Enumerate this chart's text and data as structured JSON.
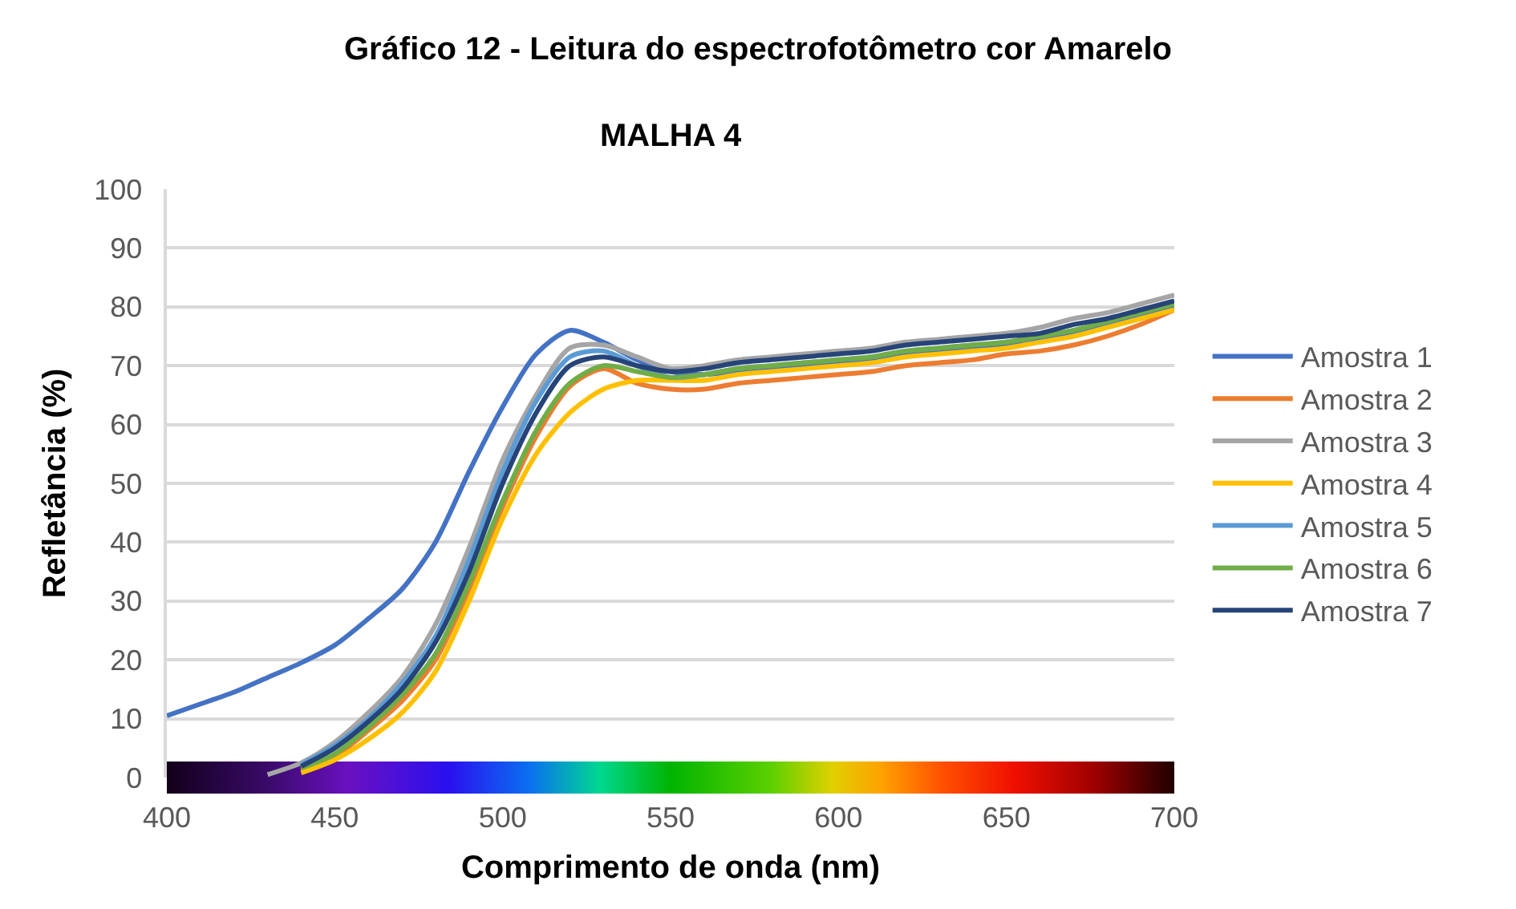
{
  "chart_data": {
    "type": "line",
    "title": "Gráfico 12 - Leitura do espectrofotômetro cor Amarelo",
    "subtitle": "MALHA 4",
    "xlabel": "Comprimento de onda (nm)",
    "ylabel": "Refletância (%)",
    "x": [
      400,
      410,
      420,
      430,
      440,
      450,
      460,
      470,
      480,
      490,
      500,
      510,
      520,
      530,
      540,
      550,
      560,
      570,
      580,
      590,
      600,
      610,
      620,
      630,
      640,
      650,
      660,
      670,
      680,
      690,
      700
    ],
    "xlim": [
      400,
      700
    ],
    "xticks": [
      400,
      450,
      500,
      550,
      600,
      650,
      700
    ],
    "ylim": [
      0,
      100
    ],
    "yticks": [
      0,
      10,
      20,
      30,
      40,
      50,
      60,
      70,
      80,
      90,
      100
    ],
    "grid": "y",
    "legend": "right",
    "marker": "none",
    "line_style": "solid",
    "series": [
      {
        "name": "Amostra 1",
        "color": "#4472c4",
        "values": [
          10.5,
          12.5,
          14.5,
          17,
          19.5,
          22.5,
          27,
          32,
          40,
          52,
          63,
          72,
          76,
          74,
          71,
          69,
          68.5,
          69,
          69.5,
          70,
          70.5,
          71,
          72,
          72.5,
          73,
          73.5,
          74.5,
          75.5,
          77,
          78.5,
          80
        ]
      },
      {
        "name": "Amostra 2",
        "color": "#ed7d31",
        "values": [
          null,
          null,
          null,
          null,
          1.2,
          3.5,
          8,
          13,
          20,
          32,
          46,
          58,
          66.5,
          69.5,
          67,
          66,
          66,
          67,
          67.5,
          68,
          68.5,
          69,
          70,
          70.5,
          71,
          72,
          72.5,
          73.5,
          75,
          77,
          79.5
        ]
      },
      {
        "name": "Amostra 3",
        "color": "#a5a5a5",
        "values": [
          null,
          null,
          null,
          0.5,
          2.5,
          6,
          11,
          17,
          26,
          39,
          54,
          65,
          73,
          73.5,
          71.5,
          69.5,
          70,
          71,
          71.5,
          72,
          72.5,
          73,
          74,
          74.5,
          75,
          75.5,
          76.5,
          78,
          79,
          80.5,
          82
        ]
      },
      {
        "name": "Amostra 4",
        "color": "#ffc000",
        "values": [
          null,
          null,
          null,
          null,
          0.8,
          3,
          6.5,
          11,
          18,
          30,
          44,
          55,
          62,
          66,
          67.5,
          67.5,
          67.5,
          68.5,
          69,
          69.5,
          70,
          70.5,
          71.5,
          72,
          72.5,
          73,
          74,
          75,
          76.5,
          78,
          79.5
        ]
      },
      {
        "name": "Amostra 5",
        "color": "#5b9bd5",
        "values": [
          null,
          null,
          null,
          null,
          2.2,
          5.5,
          10,
          16,
          24,
          37,
          52,
          64,
          71.5,
          72.5,
          70,
          68,
          68.5,
          69.5,
          70,
          70.5,
          71,
          71.5,
          72.5,
          73,
          73.5,
          74,
          75,
          76,
          77.5,
          79,
          80.5
        ]
      },
      {
        "name": "Amostra 6",
        "color": "#70ad47",
        "values": [
          null,
          null,
          null,
          null,
          1.6,
          4,
          8.5,
          14,
          21,
          33,
          47,
          59,
          67,
          70,
          69,
          68,
          68.5,
          69.5,
          70,
          70.5,
          71,
          71.5,
          72.5,
          73,
          73.5,
          74,
          75,
          76,
          77.5,
          79,
          80.5
        ]
      },
      {
        "name": "Amostra 7",
        "color": "#264478",
        "values": [
          null,
          null,
          null,
          null,
          1.9,
          5,
          9.5,
          15,
          23,
          35,
          50,
          62,
          70,
          71.5,
          70,
          69,
          69.5,
          70.5,
          71,
          71.5,
          72,
          72.5,
          73.5,
          74,
          74.5,
          75,
          75.5,
          77,
          78,
          79.5,
          81
        ]
      }
    ]
  }
}
